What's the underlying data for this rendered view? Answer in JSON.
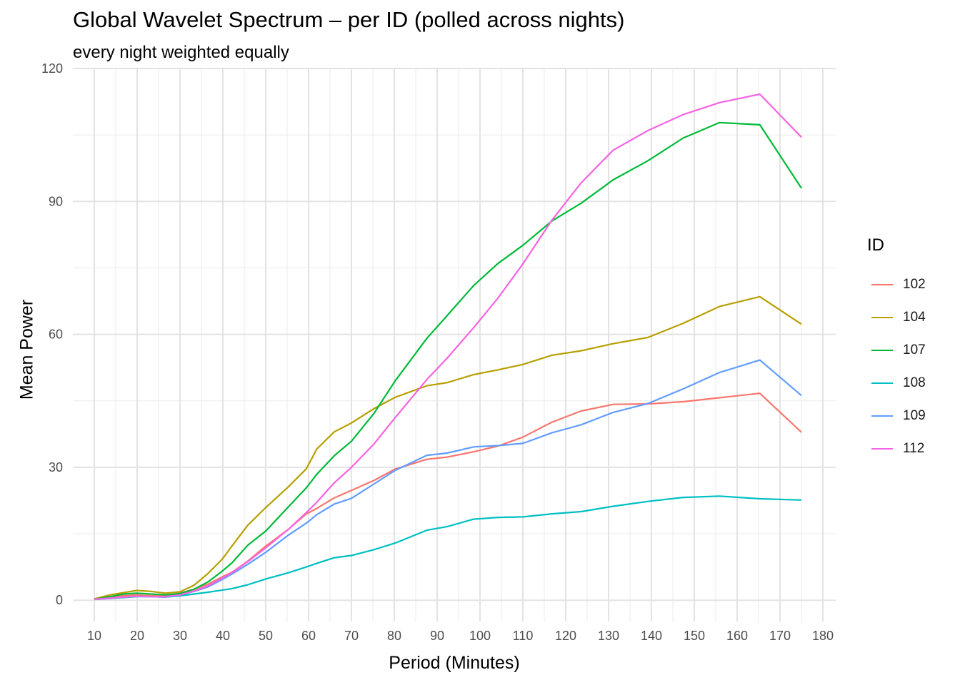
{
  "chart_data": {
    "type": "line",
    "title": "Global Wavelet Spectrum – per ID (polled across nights)",
    "subtitle": "every night weighted equally",
    "xlabel": "Period (Minutes)",
    "ylabel": "Mean Power",
    "xlim": [
      5,
      183
    ],
    "ylim": [
      -4.8,
      120
    ],
    "x_ticks": [
      10,
      20,
      30,
      40,
      50,
      60,
      70,
      80,
      90,
      100,
      110,
      120,
      130,
      140,
      150,
      160,
      170,
      180
    ],
    "y_ticks": [
      0,
      30,
      60,
      90,
      120
    ],
    "grid": true,
    "legend": {
      "title": "ID",
      "position": "right"
    },
    "x": [
      10,
      13.7,
      16.8,
      19.9,
      23.2,
      26.6,
      30,
      33.3,
      36.5,
      39.9,
      42.1,
      45.8,
      50,
      55.3,
      59.5,
      61.9,
      66,
      70,
      75.2,
      80.2,
      87.6,
      92.3,
      98.5,
      104.2,
      110,
      116.8,
      123.6,
      131.1,
      139.2,
      147.4,
      155.9,
      165.3,
      175
    ],
    "series": [
      {
        "name": "102",
        "color": "#F8766D",
        "values": [
          0.3,
          0.8,
          1.0,
          1.2,
          1.0,
          1.0,
          1.6,
          2.5,
          3.6,
          5.3,
          6.3,
          8.8,
          12.2,
          16.0,
          19.5,
          20.7,
          23.1,
          24.8,
          27.0,
          29.6,
          31.8,
          32.3,
          33.5,
          34.8,
          36.8,
          40.2,
          42.7,
          44.2,
          44.3,
          44.8,
          45.7,
          46.7,
          37.9
        ]
      },
      {
        "name": "104",
        "color": "#B79F00",
        "values": [
          0.3,
          1.2,
          1.7,
          2.2,
          2.0,
          1.6,
          1.9,
          3.4,
          6.0,
          9.3,
          12.2,
          16.9,
          20.9,
          25.6,
          29.7,
          34.1,
          38.0,
          40.0,
          43.2,
          45.8,
          48.4,
          49.1,
          50.9,
          52.0,
          53.2,
          55.3,
          56.3,
          57.9,
          59.3,
          62.5,
          66.3,
          68.5,
          62.3
        ]
      },
      {
        "name": "107",
        "color": "#00BA38",
        "values": [
          0.2,
          0.8,
          1.4,
          1.6,
          1.4,
          1.2,
          1.5,
          2.5,
          4.1,
          6.6,
          8.4,
          12.4,
          15.6,
          21.1,
          25.4,
          28.4,
          32.6,
          35.9,
          42.1,
          49.5,
          59.1,
          64.2,
          71.0,
          76.0,
          80.1,
          85.6,
          89.6,
          94.9,
          99.2,
          104.3,
          107.8,
          107.3,
          93.0
        ]
      },
      {
        "name": "108",
        "color": "#00BFC4",
        "values": [
          0.2,
          0.4,
          0.6,
          0.8,
          0.8,
          0.7,
          1.0,
          1.4,
          1.8,
          2.3,
          2.6,
          3.5,
          4.8,
          6.2,
          7.5,
          8.3,
          9.6,
          10.1,
          11.4,
          12.9,
          15.8,
          16.6,
          18.3,
          18.7,
          18.8,
          19.5,
          20.0,
          21.2,
          22.3,
          23.2,
          23.5,
          22.9,
          22.6
        ]
      },
      {
        "name": "109",
        "color": "#619CFF",
        "values": [
          0.2,
          0.4,
          0.7,
          0.9,
          0.8,
          0.7,
          1.2,
          2.0,
          3.0,
          4.7,
          5.9,
          8.1,
          10.8,
          14.7,
          17.4,
          19.3,
          21.7,
          23.0,
          26.2,
          29.3,
          32.7,
          33.2,
          34.6,
          34.9,
          35.4,
          37.8,
          39.6,
          42.4,
          44.4,
          47.7,
          51.4,
          54.2,
          46.2
        ]
      },
      {
        "name": "112",
        "color": "#F564E3",
        "values": [
          0.2,
          0.5,
          0.7,
          0.9,
          0.8,
          0.8,
          1.2,
          2.1,
          3.2,
          5.0,
          6.2,
          8.7,
          11.8,
          16.0,
          19.8,
          22.1,
          26.5,
          30.0,
          35.2,
          41.2,
          49.8,
          54.6,
          61.5,
          68.2,
          75.9,
          85.8,
          94.2,
          101.6,
          106.0,
          109.6,
          112.3,
          114.2,
          104.5
        ]
      }
    ]
  }
}
